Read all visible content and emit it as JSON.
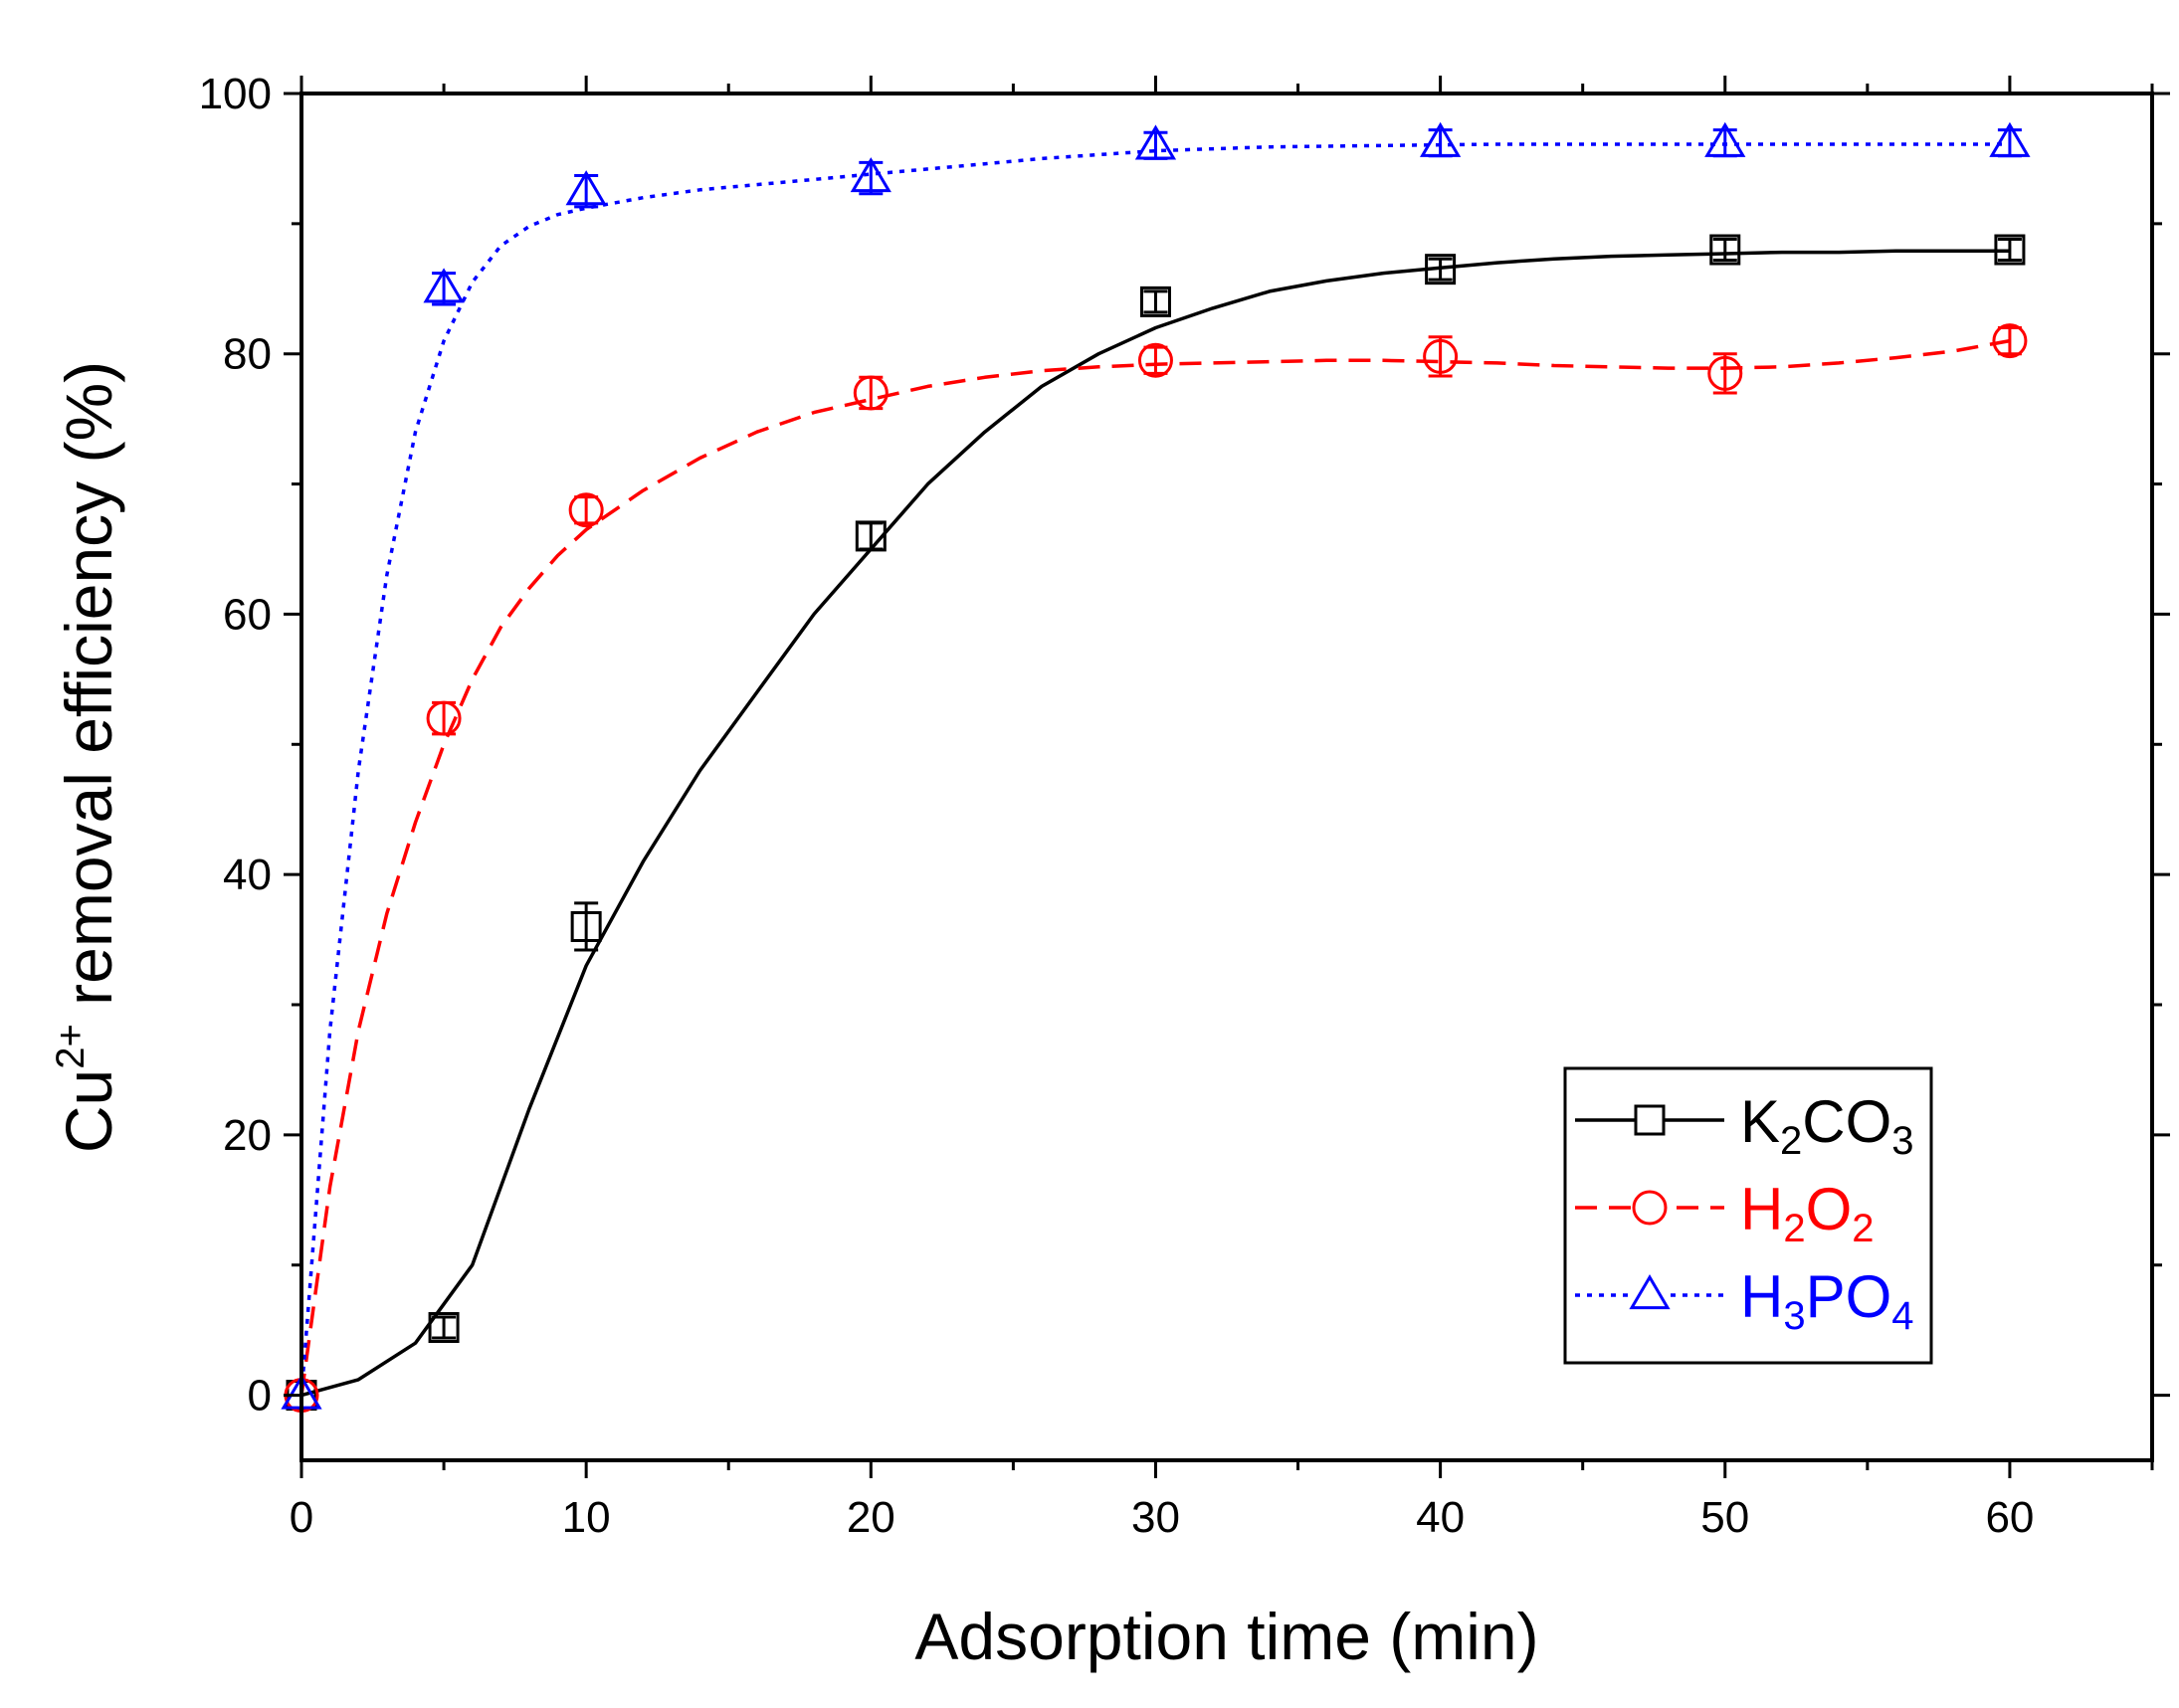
{
  "chart_data": {
    "type": "line",
    "title": "",
    "xlabel": "Adsorption time (min)",
    "ylabel": {
      "base": "Cu",
      "sup": "2+",
      "rest": " removal efficiency (%)"
    },
    "xlim": [
      0,
      65
    ],
    "ylim": [
      -5,
      100
    ],
    "xticks": [
      0,
      10,
      20,
      30,
      40,
      50,
      60
    ],
    "yticks": [
      0,
      20,
      40,
      60,
      80,
      100
    ],
    "xminor": [
      5,
      15,
      25,
      35,
      45,
      55,
      65
    ],
    "yminor": [
      10,
      30,
      50,
      70,
      90
    ],
    "x": [
      0,
      5,
      10,
      20,
      30,
      40,
      50,
      60
    ],
    "legend_position": "center-right",
    "series": [
      {
        "name": "K2CO3",
        "label": {
          "parts": [
            [
              "K",
              ""
            ],
            [
              "2",
              "sub"
            ],
            [
              "CO",
              ""
            ],
            [
              "3",
              "sub"
            ]
          ]
        },
        "color": "#000000",
        "marker": "square",
        "dash": "solid",
        "values": [
          0,
          5.2,
          36,
          66,
          84,
          86.5,
          88,
          88
        ],
        "errors": [
          0,
          0.8,
          1.8,
          1.0,
          0.8,
          0.8,
          0.8,
          0.8
        ],
        "fit": [
          [
            0,
            0
          ],
          [
            2,
            1.2
          ],
          [
            4,
            4
          ],
          [
            6,
            10
          ],
          [
            8,
            22
          ],
          [
            10,
            33
          ],
          [
            12,
            41
          ],
          [
            14,
            48
          ],
          [
            16,
            54
          ],
          [
            18,
            60
          ],
          [
            20,
            65
          ],
          [
            22,
            70
          ],
          [
            24,
            74
          ],
          [
            26,
            77.5
          ],
          [
            28,
            80
          ],
          [
            30,
            82
          ],
          [
            32,
            83.5
          ],
          [
            34,
            84.8
          ],
          [
            36,
            85.6
          ],
          [
            38,
            86.2
          ],
          [
            40,
            86.6
          ],
          [
            42,
            87
          ],
          [
            44,
            87.3
          ],
          [
            46,
            87.5
          ],
          [
            48,
            87.6
          ],
          [
            50,
            87.7
          ],
          [
            52,
            87.8
          ],
          [
            54,
            87.8
          ],
          [
            56,
            87.9
          ],
          [
            58,
            87.9
          ],
          [
            60,
            87.9
          ]
        ]
      },
      {
        "name": "H2O2",
        "label": {
          "parts": [
            [
              "H",
              ""
            ],
            [
              "2",
              "sub"
            ],
            [
              "O",
              ""
            ],
            [
              "2",
              "sub"
            ]
          ]
        },
        "color": "#ff0000",
        "marker": "circle",
        "dash": "dashed",
        "values": [
          0,
          52,
          68,
          77,
          79.5,
          79.8,
          78.5,
          81
        ],
        "errors": [
          0,
          1.2,
          1.0,
          1.2,
          1.0,
          1.5,
          1.5,
          1.0
        ],
        "fit": [
          [
            0,
            0
          ],
          [
            1,
            16
          ],
          [
            2,
            28
          ],
          [
            3,
            37
          ],
          [
            4,
            44
          ],
          [
            5,
            50
          ],
          [
            6,
            55
          ],
          [
            7,
            59
          ],
          [
            8,
            62
          ],
          [
            9,
            64.5
          ],
          [
            10,
            66.5
          ],
          [
            12,
            69.5
          ],
          [
            14,
            72
          ],
          [
            16,
            74
          ],
          [
            18,
            75.5
          ],
          [
            20,
            76.5
          ],
          [
            22,
            77.5
          ],
          [
            24,
            78.2
          ],
          [
            26,
            78.7
          ],
          [
            28,
            79
          ],
          [
            30,
            79.2
          ],
          [
            32,
            79.3
          ],
          [
            34,
            79.4
          ],
          [
            36,
            79.5
          ],
          [
            38,
            79.5
          ],
          [
            40,
            79.4
          ],
          [
            42,
            79.3
          ],
          [
            44,
            79.1
          ],
          [
            46,
            79
          ],
          [
            48,
            78.9
          ],
          [
            50,
            78.9
          ],
          [
            52,
            79
          ],
          [
            54,
            79.3
          ],
          [
            56,
            79.7
          ],
          [
            58,
            80.2
          ],
          [
            60,
            81
          ]
        ]
      },
      {
        "name": "H3PO4",
        "label": {
          "parts": [
            [
              "H",
              ""
            ],
            [
              "3",
              "sub"
            ],
            [
              "PO",
              ""
            ],
            [
              "4",
              "sub"
            ]
          ]
        },
        "color": "#0000ff",
        "marker": "triangle",
        "dash": "dotted",
        "values": [
          0,
          85,
          92.5,
          93.5,
          96,
          96.2,
          96.2,
          96.2
        ],
        "errors": [
          0,
          1.2,
          1.2,
          1.2,
          1.0,
          1.0,
          1.0,
          1.0
        ],
        "fit": [
          [
            0,
            0
          ],
          [
            1,
            28
          ],
          [
            2,
            48
          ],
          [
            3,
            63
          ],
          [
            4,
            74
          ],
          [
            5,
            81
          ],
          [
            6,
            85.5
          ],
          [
            7,
            88.3
          ],
          [
            8,
            89.8
          ],
          [
            9,
            90.7
          ],
          [
            10,
            91.2
          ],
          [
            12,
            92
          ],
          [
            14,
            92.6
          ],
          [
            16,
            93
          ],
          [
            18,
            93.4
          ],
          [
            20,
            93.8
          ],
          [
            22,
            94.2
          ],
          [
            24,
            94.6
          ],
          [
            26,
            95
          ],
          [
            28,
            95.3
          ],
          [
            30,
            95.6
          ],
          [
            34,
            95.9
          ],
          [
            38,
            96
          ],
          [
            42,
            96.1
          ],
          [
            46,
            96.1
          ],
          [
            50,
            96.1
          ],
          [
            55,
            96.1
          ],
          [
            60,
            96.1
          ]
        ]
      }
    ]
  }
}
